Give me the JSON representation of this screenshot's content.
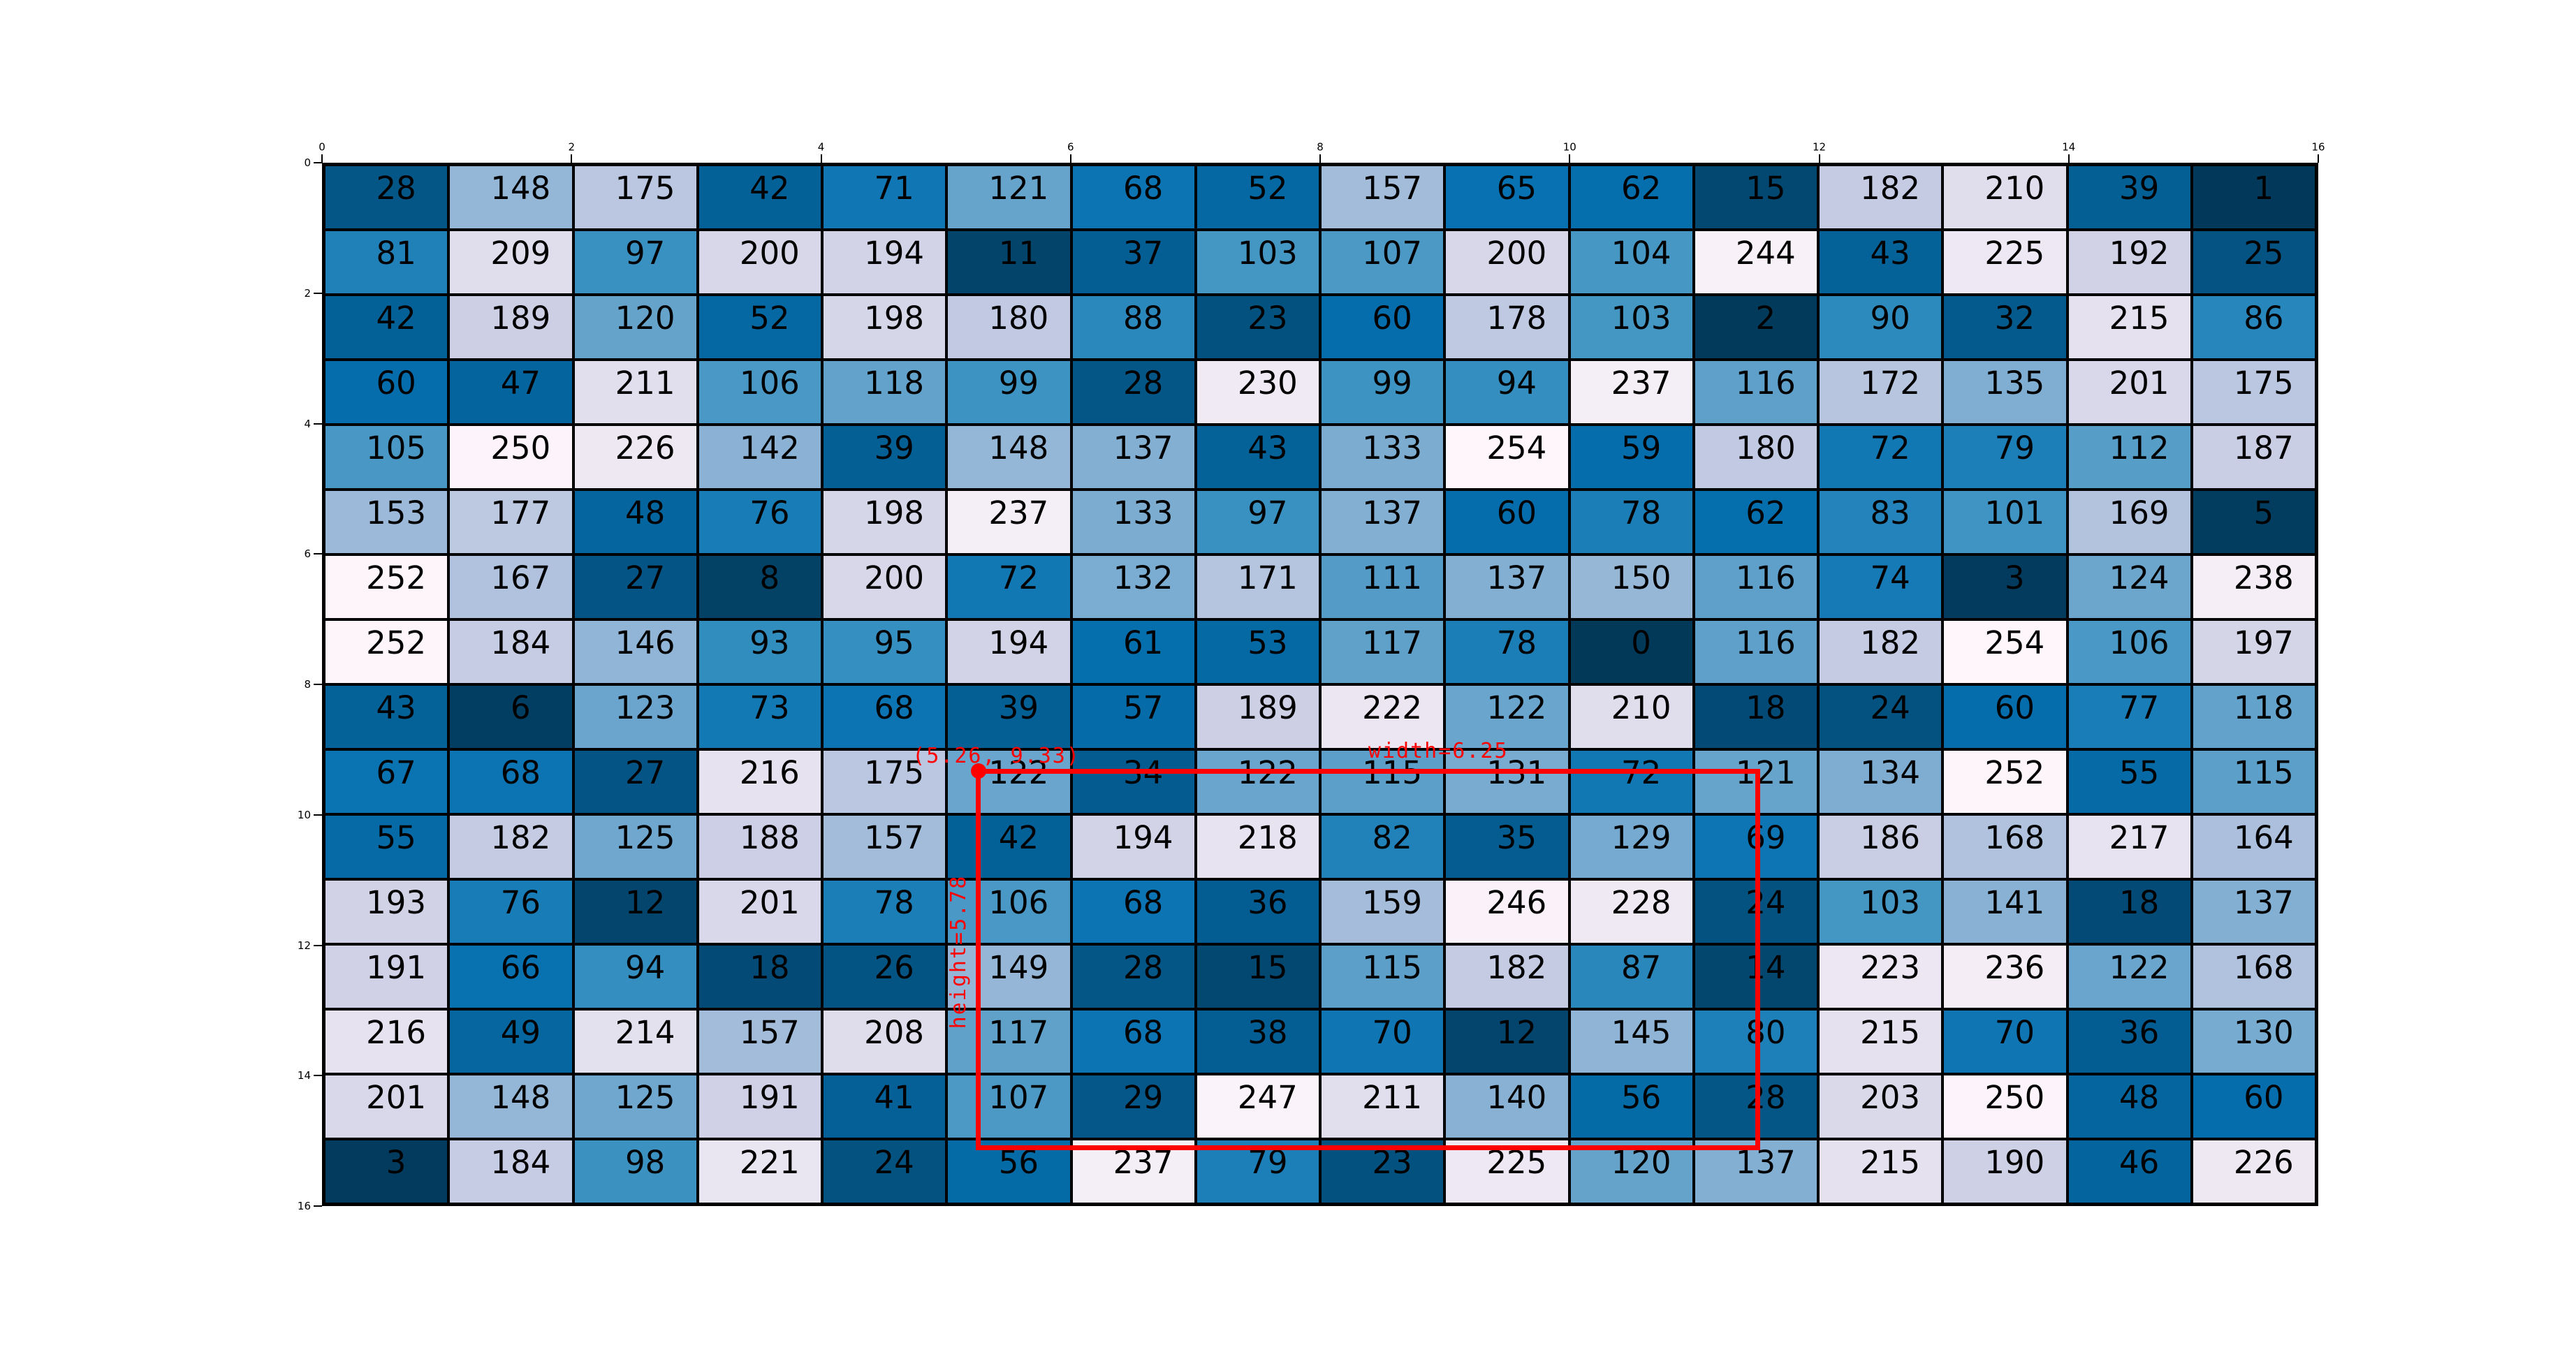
{
  "chart_data": {
    "type": "heatmap",
    "title": "",
    "grid_size": {
      "rows": 16,
      "cols": 16
    },
    "x_axis": {
      "position": "top",
      "range": [
        0,
        16
      ],
      "ticks": [
        0,
        2,
        4,
        6,
        8,
        10,
        12,
        14,
        16
      ]
    },
    "y_axis": {
      "position": "left",
      "range": [
        0,
        16
      ],
      "ticks": [
        0,
        2,
        4,
        6,
        8,
        10,
        12,
        14,
        16
      ]
    },
    "value_range": [
      0,
      255
    ],
    "colormap": {
      "name": "PuBu-reversed (low=dark navy, high=pinkish white)",
      "anchors_light_to_dark": [
        "#fff7fb",
        "#ece7f2",
        "#d0d1e6",
        "#a6bddb",
        "#74a9cf",
        "#3690c0",
        "#0570b0",
        "#045a8d",
        "#023858"
      ]
    },
    "cell_text_color": "#000000",
    "gridline_color": "#000000",
    "background_color": "#ffffff",
    "values": [
      [
        28,
        148,
        175,
        42,
        71,
        121,
        68,
        52,
        157,
        65,
        62,
        15,
        182,
        210,
        39,
        1
      ],
      [
        81,
        209,
        97,
        200,
        194,
        11,
        37,
        103,
        107,
        200,
        104,
        244,
        43,
        225,
        192,
        25
      ],
      [
        42,
        189,
        120,
        52,
        198,
        180,
        88,
        23,
        60,
        178,
        103,
        2,
        90,
        32,
        215,
        86
      ],
      [
        60,
        47,
        211,
        106,
        118,
        99,
        28,
        230,
        99,
        94,
        237,
        116,
        172,
        135,
        201,
        175
      ],
      [
        105,
        250,
        226,
        142,
        39,
        148,
        137,
        43,
        133,
        254,
        59,
        180,
        72,
        79,
        112,
        187
      ],
      [
        153,
        177,
        48,
        76,
        198,
        237,
        133,
        97,
        137,
        60,
        78,
        62,
        83,
        101,
        169,
        5
      ],
      [
        252,
        167,
        27,
        8,
        200,
        72,
        132,
        171,
        111,
        137,
        150,
        116,
        74,
        3,
        124,
        238
      ],
      [
        252,
        184,
        146,
        93,
        95,
        194,
        61,
        53,
        117,
        78,
        0,
        116,
        182,
        254,
        106,
        197
      ],
      [
        43,
        6,
        123,
        73,
        68,
        39,
        57,
        189,
        222,
        122,
        210,
        18,
        24,
        60,
        77,
        118
      ],
      [
        67,
        68,
        27,
        216,
        175,
        122,
        34,
        122,
        115,
        131,
        72,
        121,
        134,
        252,
        55,
        115
      ],
      [
        55,
        182,
        125,
        188,
        157,
        42,
        194,
        218,
        82,
        35,
        129,
        69,
        186,
        168,
        217,
        164
      ],
      [
        193,
        76,
        12,
        201,
        78,
        106,
        68,
        36,
        159,
        246,
        228,
        24,
        103,
        141,
        18,
        137
      ],
      [
        191,
        66,
        94,
        18,
        26,
        149,
        28,
        15,
        115,
        182,
        87,
        14,
        223,
        236,
        122,
        168
      ],
      [
        216,
        49,
        214,
        157,
        208,
        117,
        68,
        38,
        70,
        12,
        145,
        80,
        215,
        70,
        36,
        130
      ],
      [
        201,
        148,
        125,
        191,
        41,
        107,
        29,
        247,
        211,
        140,
        56,
        28,
        203,
        250,
        48,
        60
      ],
      [
        3,
        184,
        98,
        221,
        24,
        56,
        237,
        79,
        23,
        225,
        120,
        137,
        215,
        190,
        46,
        226
      ]
    ],
    "annotation": {
      "color": "#ff0000",
      "point": {
        "x": 5.26,
        "y": 9.33
      },
      "point_label": "(5.26, 9.33)",
      "rect": {
        "x": 5.26,
        "y": 9.33,
        "width": 6.25,
        "height": 5.78
      },
      "width_label": "width=6.25",
      "height_label": "height=5.78"
    }
  }
}
